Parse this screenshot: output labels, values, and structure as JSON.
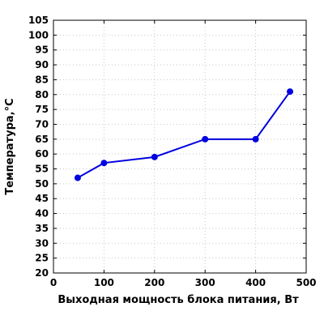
{
  "chart_data": {
    "type": "line",
    "xlabel": "Выходная мощность блока питания, Вт",
    "ylabel": "Температура,°C",
    "xlim": [
      0,
      500
    ],
    "ylim": [
      20,
      105
    ],
    "x_ticks": [
      0,
      100,
      200,
      300,
      400,
      500
    ],
    "y_ticks": [
      20,
      25,
      30,
      35,
      40,
      45,
      50,
      55,
      60,
      65,
      70,
      75,
      80,
      85,
      90,
      95,
      100,
      105
    ],
    "grid": true,
    "series": [
      {
        "color": "#0000e0",
        "points": [
          {
            "x": 48,
            "y": 52
          },
          {
            "x": 100,
            "y": 57
          },
          {
            "x": 200,
            "y": 59
          },
          {
            "x": 300,
            "y": 65
          },
          {
            "x": 400,
            "y": 65
          },
          {
            "x": 468,
            "y": 81
          }
        ]
      }
    ]
  }
}
